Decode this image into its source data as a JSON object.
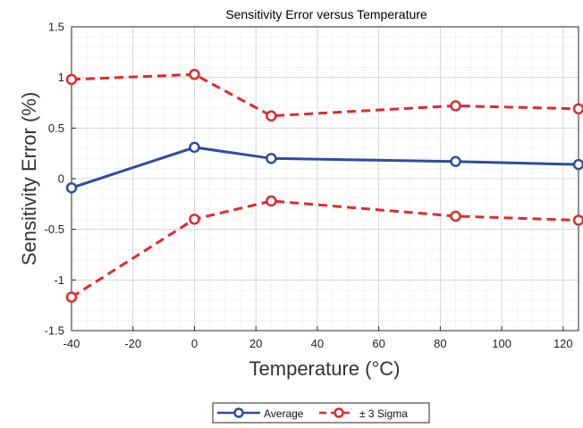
{
  "chart_data": {
    "type": "line",
    "title": "Sensitivity Error versus Temperature",
    "xlabel": "Temperature (°C)",
    "ylabel": "Sensitivity Error (%)",
    "xlim": [
      -40,
      125
    ],
    "ylim": [
      -1.5,
      1.5
    ],
    "x_ticks": [
      -40,
      -20,
      0,
      20,
      40,
      60,
      80,
      100,
      120
    ],
    "x_tick_labels": [
      "-40",
      "-20",
      "0",
      "20",
      "40",
      "60",
      "80",
      "100",
      "120"
    ],
    "y_ticks": [
      -1.5,
      -1,
      -0.5,
      0,
      0.5,
      1,
      1.5
    ],
    "y_tick_labels": [
      "-1.5",
      "-1",
      "-0.5",
      "0",
      "0.5",
      "1",
      "1.5"
    ],
    "grid": true,
    "minor_grid": true,
    "legend_position": "bottom-center",
    "series": [
      {
        "name": "Average",
        "color": "#2e4da0",
        "style": "solid",
        "marker": "circle",
        "x": [
          -40,
          0,
          25,
          85,
          125
        ],
        "y": [
          -0.09,
          0.31,
          0.2,
          0.17,
          0.14
        ]
      },
      {
        "name": "± 3 Sigma",
        "color": "#e02a2e",
        "style": "dashed",
        "marker": "circle",
        "x": [
          -40,
          0,
          25,
          85,
          125
        ],
        "y": [
          0.98,
          1.03,
          0.62,
          0.72,
          0.69
        ]
      },
      {
        "name": "",
        "color": "#e02a2e",
        "style": "dashed",
        "marker": "circle",
        "x": [
          -40,
          0,
          25,
          85,
          125
        ],
        "y": [
          -1.17,
          -0.4,
          -0.22,
          -0.37,
          -0.41
        ]
      }
    ]
  }
}
